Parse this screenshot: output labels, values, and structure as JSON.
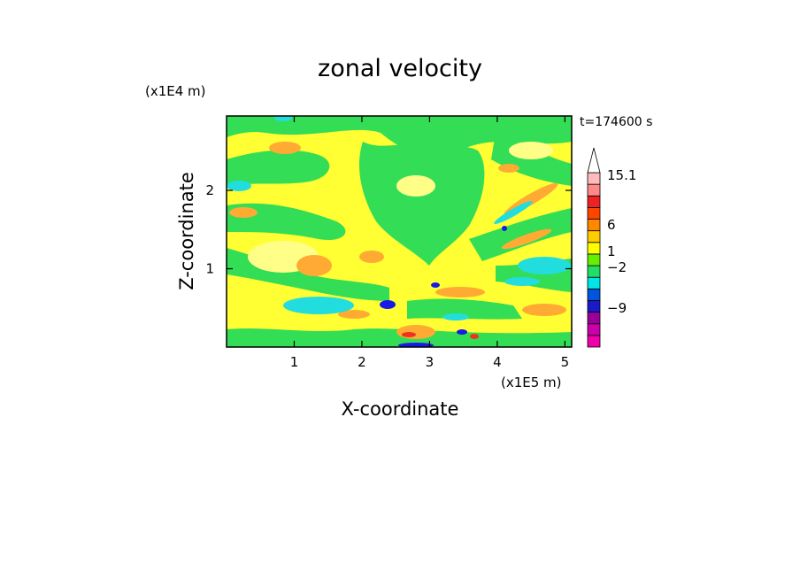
{
  "chart_data": {
    "type": "heatmap",
    "title": "zonal velocity",
    "xlabel": "X-coordinate",
    "ylabel": "Z-coordinate",
    "x_scale_label": "(x1E5 m)",
    "y_scale_label": "(x1E4 m)",
    "time_label": "t=174600 s",
    "xlim": [
      0,
      5.1
    ],
    "ylim": [
      0,
      2.95
    ],
    "x_ticks": [
      {
        "value": 1,
        "label": "1"
      },
      {
        "value": 2,
        "label": "2"
      },
      {
        "value": 3,
        "label": "3"
      },
      {
        "value": 4,
        "label": "4"
      },
      {
        "value": 5,
        "label": "5"
      }
    ],
    "y_ticks": [
      {
        "value": 1,
        "label": "1"
      },
      {
        "value": 2,
        "label": "2"
      }
    ],
    "colorbar": {
      "levels": [
        {
          "color": "#ee00aa"
        },
        {
          "color": "#cc00aa"
        },
        {
          "color": "#990099"
        },
        {
          "color": "#1a1ac8"
        },
        {
          "color": "#0055dd"
        },
        {
          "color": "#00e6e6"
        },
        {
          "color": "#22dd66"
        },
        {
          "color": "#66ee00"
        },
        {
          "color": "#ffff00"
        },
        {
          "color": "#ffcc00"
        },
        {
          "color": "#ff8800"
        },
        {
          "color": "#ff4400"
        },
        {
          "color": "#ee2222"
        },
        {
          "color": "#ff8888"
        },
        {
          "color": "#ffbbbb"
        },
        {
          "color": "#ffffff"
        }
      ],
      "labels": [
        {
          "value": "15.1"
        },
        {
          "value": "6"
        },
        {
          "value": "1"
        },
        {
          "value": "−2"
        },
        {
          "value": "−9"
        }
      ]
    },
    "field_colors": {
      "green": "#33dd55",
      "yellow": "#ffff33",
      "light_yellow": "#ffff88",
      "orange": "#ffaa33",
      "cyan": "#22dddd",
      "blue": "#1a1ae6",
      "red": "#ee3322"
    }
  }
}
